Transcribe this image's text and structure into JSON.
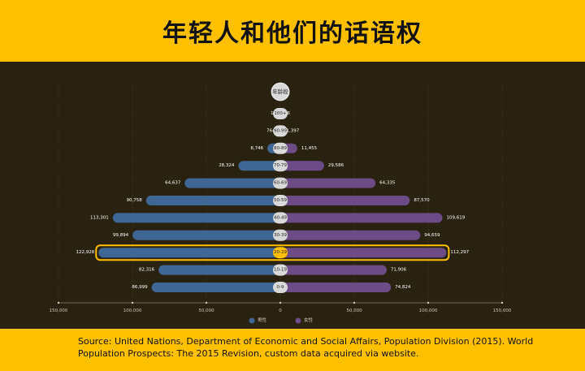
{
  "header": {
    "title": "年轻人和他们的话语权"
  },
  "source": "Source: United Nations, Department of Economic and Social Affairs, Population Division (2015). World Population Prospects: The 2015 Revision, custom data acquired via website.",
  "colors": {
    "background": "#ffc000",
    "panel": "#2a2210",
    "male": "#3f6795",
    "female": "#6c4b87",
    "highlight": "#ffc000",
    "age_pill": "#d9d9d9"
  },
  "chart_data": {
    "type": "bar",
    "orientation": "horizontal",
    "category_header": "年龄段",
    "categories": [
      "100+",
      "90-99",
      "80-89",
      "70-79",
      "60-69",
      "50-59",
      "40-49",
      "30-39",
      "20-29",
      "10-19",
      "0-9"
    ],
    "series": [
      {
        "name": "男性",
        "values": [
          12,
          764,
          8746,
          28324,
          64637,
          90758,
          113301,
          99894,
          122928,
          82316,
          86999
        ],
        "labels": [
          "12",
          "764",
          "8,746",
          "28,324",
          "64,637",
          "90,758",
          "113,301",
          "99,894",
          "122,928",
          "82,316",
          "86,999"
        ]
      },
      {
        "name": "女性",
        "values": [
          36,
          1397,
          11455,
          29586,
          64335,
          87570,
          109619,
          94659,
          112297,
          71906,
          74824
        ],
        "labels": [
          "36",
          "1,397",
          "11,455",
          "29,586",
          "64,335",
          "87,570",
          "109,619",
          "94,659",
          "112,297",
          "71,906",
          "74,824"
        ]
      }
    ],
    "highlight_category": "20-29",
    "xlim": [
      -150000,
      150000
    ],
    "x_ticks": [
      -150000,
      -100000,
      -50000,
      0,
      50000,
      100000,
      150000
    ],
    "x_tick_labels": [
      "150,000",
      "100,000",
      "50,000",
      "0",
      "50,000",
      "100,000",
      "150,000"
    ],
    "grid": true,
    "legend_position": "bottom"
  }
}
